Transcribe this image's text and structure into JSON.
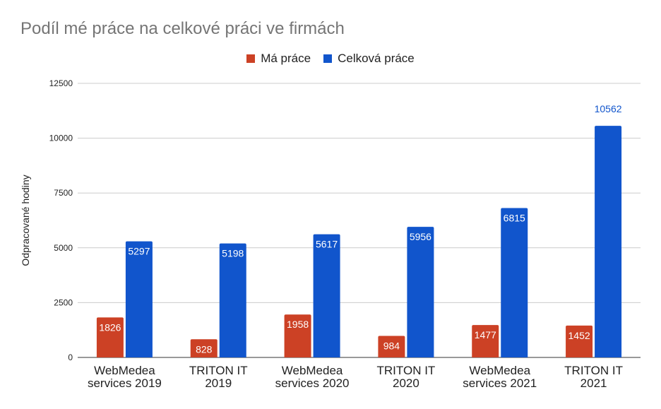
{
  "chart_data": {
    "type": "bar",
    "title": "Podíl mé práce na celkové práci ve firmách",
    "ylabel": "Odpracované hodiny",
    "xlabel": "",
    "ylim": [
      0,
      12500
    ],
    "yticks": [
      0,
      2500,
      5000,
      7500,
      10000,
      12500
    ],
    "grid": true,
    "legend_position": "top",
    "categories": [
      [
        "WebMedea",
        "services 2019"
      ],
      [
        "TRITON IT",
        "2019"
      ],
      [
        "WebMedea",
        "services 2020"
      ],
      [
        "TRITON IT",
        "2020"
      ],
      [
        "WebMedea",
        "services 2021"
      ],
      [
        "TRITON IT",
        "2021"
      ]
    ],
    "series": [
      {
        "name": "Má práce",
        "color": "#cc4125",
        "values": [
          1826,
          828,
          1958,
          984,
          1477,
          1452
        ]
      },
      {
        "name": "Celková práce",
        "color": "#1155cc",
        "values": [
          5297,
          5198,
          5617,
          5956,
          6815,
          10562
        ]
      }
    ]
  }
}
